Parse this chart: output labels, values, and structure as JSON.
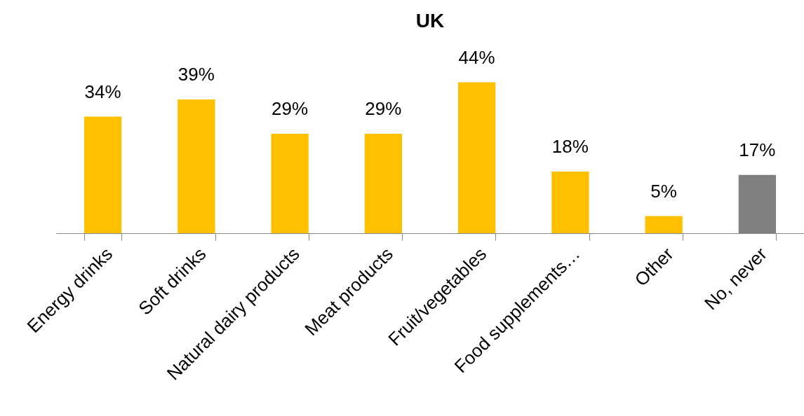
{
  "chart_data": {
    "type": "bar",
    "title": "UK",
    "categories": [
      "Energy drinks",
      "Soft drinks",
      "Natural dairy products",
      "Meat products",
      "Fruit/vegetables",
      "Food supplements…",
      "Other",
      "No, never"
    ],
    "values": [
      34,
      39,
      29,
      29,
      44,
      18,
      5,
      17
    ],
    "colors": [
      "#ffc000",
      "#ffc000",
      "#ffc000",
      "#ffc000",
      "#ffc000",
      "#ffc000",
      "#ffc000",
      "#808080"
    ],
    "value_labels": [
      "34%",
      "39%",
      "29%",
      "29%",
      "44%",
      "18%",
      "5%",
      "17%"
    ],
    "grid": false
  }
}
